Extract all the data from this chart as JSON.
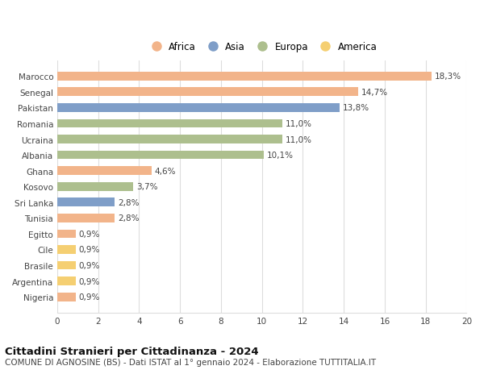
{
  "categories": [
    "Nigeria",
    "Argentina",
    "Brasile",
    "Cile",
    "Egitto",
    "Tunisia",
    "Sri Lanka",
    "Kosovo",
    "Ghana",
    "Albania",
    "Ucraina",
    "Romania",
    "Pakistan",
    "Senegal",
    "Marocco"
  ],
  "values": [
    0.9,
    0.9,
    0.9,
    0.9,
    0.9,
    2.8,
    2.8,
    3.7,
    4.6,
    10.1,
    11.0,
    11.0,
    13.8,
    14.7,
    18.3
  ],
  "continents": [
    "Africa",
    "America",
    "America",
    "America",
    "Africa",
    "Africa",
    "Asia",
    "Europa",
    "Africa",
    "Europa",
    "Europa",
    "Europa",
    "Asia",
    "Africa",
    "Africa"
  ],
  "colors": {
    "Africa": "#F2B48A",
    "Asia": "#7F9EC8",
    "Europa": "#ADBF8E",
    "America": "#F5CF72"
  },
  "labels": [
    "0,9%",
    "0,9%",
    "0,9%",
    "0,9%",
    "0,9%",
    "2,8%",
    "2,8%",
    "3,7%",
    "4,6%",
    "10,1%",
    "11,0%",
    "11,0%",
    "13,8%",
    "14,7%",
    "18,3%"
  ],
  "title1": "Cittadini Stranieri per Cittadinanza - 2024",
  "title2": "COMUNE DI AGNOSINE (BS) - Dati ISTAT al 1° gennaio 2024 - Elaborazione TUTTITALIA.IT",
  "xlim": [
    0,
    20
  ],
  "xticks": [
    0,
    2,
    4,
    6,
    8,
    10,
    12,
    14,
    16,
    18,
    20
  ],
  "legend_labels": [
    "Africa",
    "Asia",
    "Europa",
    "America"
  ],
  "legend_colors": [
    "#F2B48A",
    "#7F9EC8",
    "#ADBF8E",
    "#F5CF72"
  ],
  "bg_color": "#FFFFFF",
  "grid_color": "#DDDDDD",
  "bar_height": 0.55,
  "label_fontsize": 7.5,
  "tick_fontsize": 7.5,
  "title1_fontsize": 9.5,
  "title2_fontsize": 7.5
}
